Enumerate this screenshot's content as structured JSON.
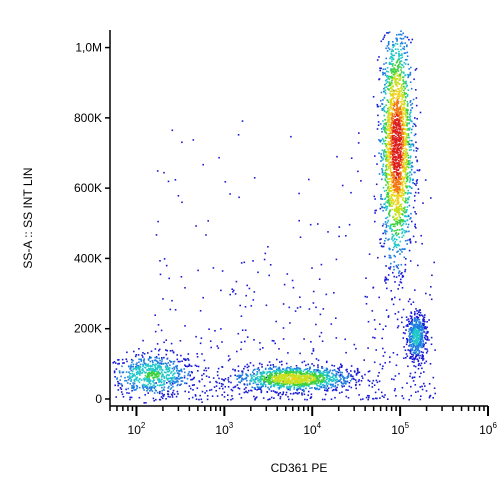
{
  "chart_data": {
    "type": "scatter",
    "style": "flow-cytometry pseudocolor density dot plot",
    "xlabel": "CD361 PE",
    "ylabel": "SS-A :: SS INT LIN",
    "x_scale": "log",
    "xlim": [
      50,
      1000000
    ],
    "y_scale": "linear",
    "ylim": [
      -20000,
      1050000
    ],
    "x_ticks": [
      {
        "value": 100,
        "base": "10",
        "exp": "2"
      },
      {
        "value": 1000,
        "base": "10",
        "exp": "3"
      },
      {
        "value": 10000,
        "base": "10",
        "exp": "4"
      },
      {
        "value": 100000,
        "base": "10",
        "exp": "5"
      },
      {
        "value": 1000000,
        "base": "10",
        "exp": "6"
      }
    ],
    "y_ticks": [
      {
        "value": 0,
        "label": "0"
      },
      {
        "value": 200000,
        "label": "200K"
      },
      {
        "value": 400000,
        "label": "400K"
      },
      {
        "value": 600000,
        "label": "600K"
      },
      {
        "value": 800000,
        "label": "800K"
      },
      {
        "value": 1000000,
        "label": "1,0M"
      }
    ],
    "grid": false,
    "density_colors": [
      "#1a1ad6",
      "#1e7fe0",
      "#20c8c8",
      "#3cd13c",
      "#c8e01e",
      "#f0d21e",
      "#f07814",
      "#dc1e1e"
    ],
    "populations": [
      {
        "x_center": 150,
        "x_log_spread": 0.25,
        "y_center": 70000,
        "y_spread": 30000,
        "relative_density": 0.25
      },
      {
        "x_center": 6000,
        "x_log_spread": 0.33,
        "y_center": 60000,
        "y_spread": 18000,
        "relative_density": 0.45
      },
      {
        "x_center": 90000,
        "x_log_spread": 0.09,
        "y_center": 720000,
        "y_spread": 160000,
        "relative_density": 0.8
      },
      {
        "x_center": 150000,
        "x_log_spread": 0.06,
        "y_center": 180000,
        "y_spread": 35000,
        "relative_density": 0.18
      }
    ]
  }
}
